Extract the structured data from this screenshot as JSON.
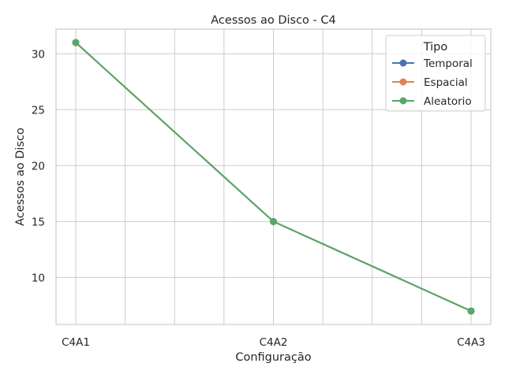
{
  "chart_data": {
    "type": "line",
    "title": "Acessos ao Disco - C4",
    "xlabel": "Configuração",
    "ylabel": "Acessos ao Disco",
    "categories": [
      "C4A1",
      "C4A2",
      "C4A3"
    ],
    "ylim": [
      5.8,
      32.2
    ],
    "yticks": [
      10,
      15,
      20,
      25,
      30
    ],
    "grid": true,
    "legend": {
      "title": "Tipo",
      "placement": "top-right"
    },
    "series": [
      {
        "name": "Temporal",
        "color": "#4c72b0",
        "values": [
          31,
          15,
          7
        ]
      },
      {
        "name": "Espacial",
        "color": "#dd8452",
        "values": [
          31,
          15,
          7
        ]
      },
      {
        "name": "Aleatorio",
        "color": "#55a868",
        "values": [
          31,
          15,
          7
        ]
      }
    ]
  }
}
